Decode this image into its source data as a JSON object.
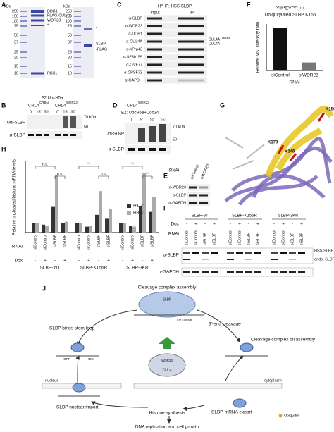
{
  "panel_labels": [
    "A",
    "B",
    "C",
    "D",
    "E",
    "F",
    "G",
    "H",
    "I",
    "J"
  ],
  "A": {
    "unit": "kDa",
    "markers": [
      250,
      150,
      100,
      75,
      50,
      37,
      25,
      20,
      15,
      10
    ],
    "bands": [
      "DDB1",
      "FLAG-CUL4A",
      "WDR23",
      "*",
      "RBX1"
    ],
    "unit2": "kDa",
    "markers2": [
      250,
      150,
      100,
      75,
      50,
      37,
      25,
      20,
      15,
      10
    ],
    "star": "*",
    "product": [
      "SLBP",
      "-FLAG"
    ]
  },
  "B": {
    "enzyme": "E2:UbcH5a",
    "ligases": [
      {
        "name": "CRL4",
        "sup": "CRBN"
      },
      {
        "name": "CRL4",
        "sup": "WDR23"
      }
    ],
    "times": [
      "0'",
      "15'",
      "30'"
    ],
    "markers": [
      {
        "value": 70,
        "label": "70 kDa"
      },
      50
    ],
    "rows": [
      "Ubi-SLBP",
      "α-SLBP"
    ]
  },
  "C": {
    "title": "HA IP: HSS-SLBP",
    "columns": [
      "Input",
      "IP"
    ],
    "rows": [
      "α-SLBP",
      "α-WDR23",
      "α-DDB1",
      "α-CUL4A",
      "α-hPrp43",
      "α-SF3b155",
      "α-CstF77",
      "α-CPSF73",
      "α-GAPDH"
    ],
    "cul4a": "CUL4A",
    "nedd8": "NEDD8",
    "cul4a_plain": "CUL4A"
  },
  "D": {
    "ligase": "CRL4",
    "sup": "WDR23",
    "enzyme": "E2: UbcH5a+Cdc34",
    "times": [
      "0'",
      "5'",
      "10'",
      "15'"
    ],
    "markers": [
      {
        "value": 70,
        "label": "70 kDa"
      },
      50
    ],
    "rows": [
      "Ubi-SLBP",
      "α-SLBP"
    ]
  },
  "E": {
    "rnai": "RNAi",
    "lanes": [
      "siControl",
      "siWDR23"
    ],
    "rows": [
      "α-WDR23",
      "α-SLBP",
      "α-GAPDH"
    ]
  },
  "F": {
    "title": "YIK*EVPR ++",
    "subtitle": "Ubiquitylated SLBP K156",
    "ylabel": "Relative MS1 intensity ratio",
    "categories": [
      "siControl",
      "siWDR23"
    ],
    "values": [
      1.0,
      0.19
    ],
    "colors": [
      "#111111",
      "#777777"
    ],
    "xlabel": "RNAi",
    "ylim": [
      0,
      1.1
    ]
  },
  "G": {
    "residues": [
      "K156",
      "K170",
      "K146"
    ]
  },
  "H": {
    "ylabel": "Relative uncleaved histone mRNA levels",
    "ylim": [
      0,
      7
    ],
    "groups": [
      "SLBP-WT",
      "SLBP-K156R",
      "SLBP-3KR"
    ],
    "rnai_label": "RNAi",
    "dox_label": "Dox",
    "rnai": [
      "siControl",
      "siControl",
      "siSLBP",
      "siSLBP"
    ],
    "dox": [
      "-",
      "+",
      "-",
      "+"
    ],
    "series": [
      {
        "name": "H1 3'",
        "color": "#333333",
        "values": [
          1.0,
          0.8,
          2.6,
          1.0,
          1.0,
          0.6,
          1.8,
          1.4,
          1.0,
          0.7,
          2.7,
          2.1
        ]
      },
      {
        "name": "H3 3'",
        "color": "#aaaaaa",
        "values": [
          1.0,
          0.7,
          5.8,
          1.1,
          1.0,
          0.7,
          4.2,
          2.4,
          1.0,
          0.6,
          6.0,
          3.6
        ]
      }
    ],
    "significance": [
      [
        "n.s.",
        "n.s."
      ],
      [
        "**",
        "n.s."
      ],
      [
        "**",
        "**"
      ]
    ]
  },
  "I": {
    "groups": [
      "SLBP-WT",
      "SLBP-K156R",
      "SLBP-3KR"
    ],
    "dox_label": "Dox",
    "rnai_label": "RNAi",
    "dox": [
      "-",
      "+",
      "-",
      "+"
    ],
    "rnai": [
      "siControl",
      "siControl",
      "siSLBP",
      "siSLBP"
    ],
    "rows": [
      "α-SLBP",
      "α-GAPDH"
    ],
    "bands": [
      "HSS-SLBP",
      "endo. SLBP"
    ]
  },
  "J": {
    "steps": [
      "Cleavage complex assembly",
      "3'-end cleavage",
      "Cleavage complex disassembly",
      "SLBP binds stem-loop",
      "SLBP nuclear import",
      "Histone synthesis",
      "SLBP-mRNA export",
      "DNA replication and cell growth"
    ],
    "nucleus": "nucleus",
    "cytoplasm": "cytoplasm",
    "ubiquitin": "Ubiquitin",
    "slbp": "SLBP",
    "u7": "U7 snRNP",
    "cul4": "CUL4",
    "wdr23": "WDR23",
    "orf": "ORF",
    "hde": "HDE"
  }
}
